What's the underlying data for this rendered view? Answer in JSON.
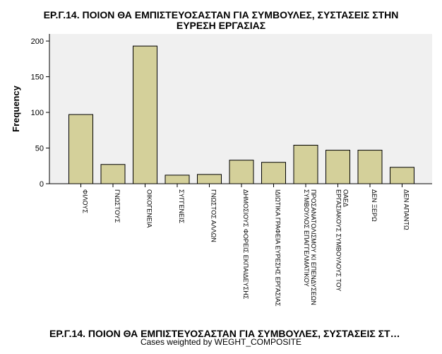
{
  "chart_data": {
    "type": "bar",
    "title_lines": [
      "ΕΡ.Γ.14. ΠΟΙΟΝ ΘΑ ΕΜΠΙΣΤΕΥΟΣΑΣΤΑΝ ΓΙΑ ΣΥΜΒΟΥΛΕΣ, ΣΥΣΤΑΣΕΙΣ ΣΤΗΝ",
      "ΕΥΡΕΣΗ ΕΡΓΑΣΙΑΣ"
    ],
    "xlabel": "ΕΡ.Γ.14. ΠΟΙΟΝ ΘΑ ΕΜΠΙΣΤΕΥΟΣΑΣΤΑΝ ΓΙΑ ΣΥΜΒΟΥΛΕΣ, ΣΥΣΤΑΣΕΙΣ ΣΤ…",
    "ylabel": "Frequency",
    "footnote": "Cases weighted by WEGHT_COMPOSITE",
    "ylim": [
      0,
      210
    ],
    "yticks": [
      0,
      50,
      100,
      150,
      200
    ],
    "categories": [
      [
        "ΦΙΛΟΥΣ"
      ],
      [
        "ΓΝΩΣΤΟΥΣ"
      ],
      [
        "ΟΙΚΟΓΕΝΕΙΑ"
      ],
      [
        "ΣΥΓΓΕΝΕΙΣ"
      ],
      [
        "ΓΝΩΣΤΟΣ ΑΛΛΩΝ"
      ],
      [
        "ΔΗΜΟΣΙΟΥΣ ΦΟΡΕΙΣ ΕΚΠΑΙΔΕΥΣΗΣ"
      ],
      [
        "ΙΔΙΩΤΙΚΑ ΓΡΑΦΕΙΑ ΕΥΡΕΣΗΣ ΕΡΓΑΣΙΑΣ"
      ],
      [
        "ΣΥΜΒΟΥΛΟΣ ΕΠΑΓΓΕΛΜΑΤΙΚΟΥ",
        "ΠΡΟΣΑΝΑΤΟΛΙΣΜΟΥ ΚΙ ΕΠΕΝΔΥΣΕΩΝ"
      ],
      [
        "ΕΡΓΑΣΙΑΚΟΥΣ ΣΥΜΒΟΥΛΟΥΣ ΤΟΥ",
        "ΟΑΕΔ"
      ],
      [
        "ΔΕΝ ΞΕΡΩ"
      ],
      [
        "ΔΕΝ ΑΠΑΝΤΩ"
      ]
    ],
    "values": [
      97,
      27,
      193,
      12,
      13,
      33,
      30,
      54,
      47,
      47,
      23
    ],
    "bar_color": "#d4d09a",
    "plot_background": "#f0f0f0",
    "grid": false
  }
}
